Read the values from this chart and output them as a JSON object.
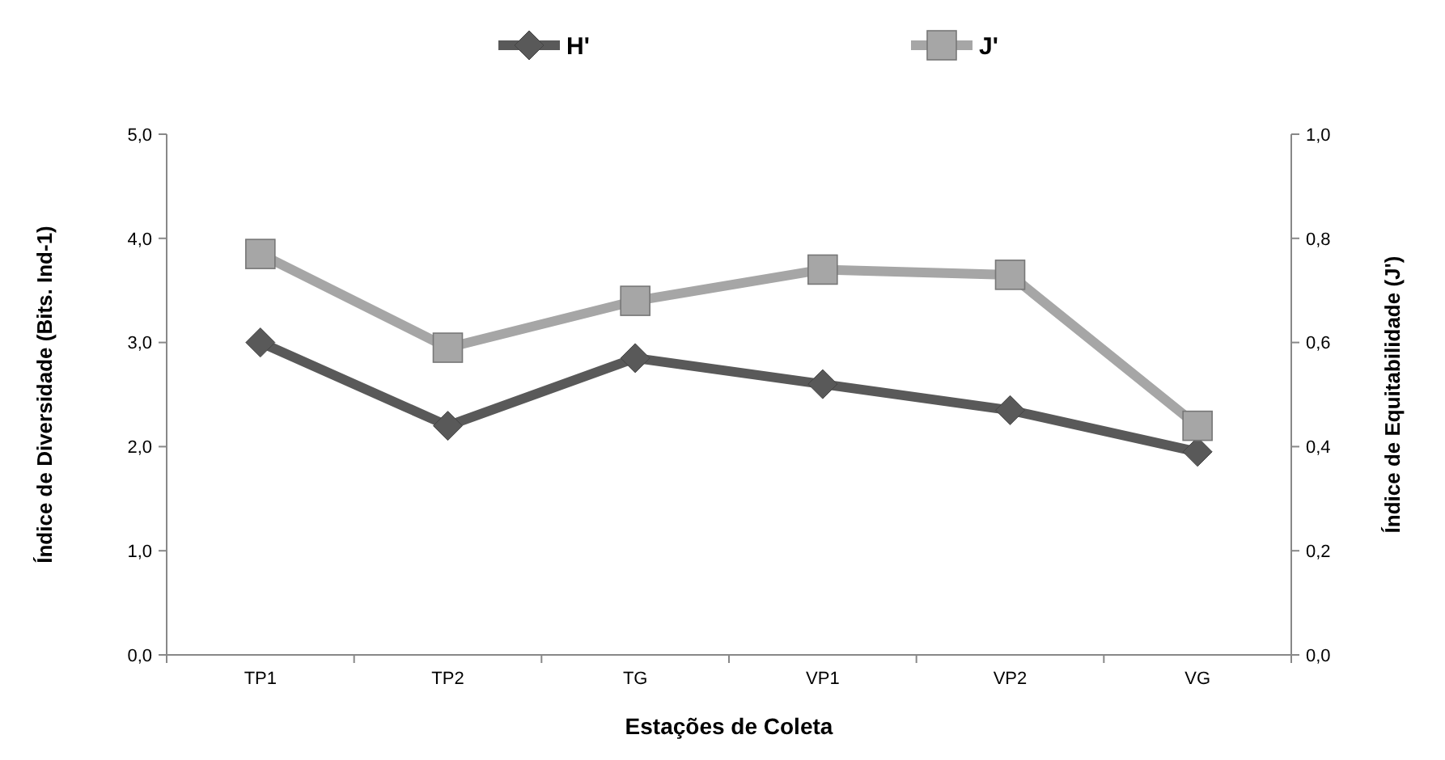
{
  "chart_data": {
    "type": "line",
    "xlabel": "Estações de Coleta",
    "ylabel": "Índice de Diversidade (Bits. Ind-1)",
    "y2label": "Índice de Equitabilidade (J')",
    "categories": [
      "TP1",
      "TP2",
      "TG",
      "VP1",
      "VP2",
      "VG"
    ],
    "series": [
      {
        "name": "H'",
        "color": "#595959",
        "marker": "diamond",
        "values": [
          3.0,
          2.2,
          2.85,
          2.6,
          2.35,
          1.95
        ]
      },
      {
        "name": "J'",
        "color": "#a6a6a6",
        "marker": "square",
        "axis": "y2",
        "values": [
          0.77,
          0.59,
          0.68,
          0.74,
          0.73,
          0.44
        ]
      }
    ],
    "ylim": [
      0,
      5
    ],
    "yticks": [
      {
        "value": 0,
        "label": "0,0"
      },
      {
        "value": 1,
        "label": "1,0"
      },
      {
        "value": 2,
        "label": "2,0"
      },
      {
        "value": 3,
        "label": "3,0"
      },
      {
        "value": 4,
        "label": "4,0"
      },
      {
        "value": 5,
        "label": "5,0"
      }
    ],
    "y2lim": [
      0,
      1
    ],
    "y2ticks": [
      {
        "value": 0,
        "label": "0,0"
      },
      {
        "value": 0.2,
        "label": "0,2"
      },
      {
        "value": 0.4,
        "label": "0,4"
      },
      {
        "value": 0.6,
        "label": "0,6"
      },
      {
        "value": 0.8,
        "label": "0,8"
      },
      {
        "value": 1,
        "label": "1,0"
      }
    ],
    "legend": "top",
    "grid": false
  }
}
